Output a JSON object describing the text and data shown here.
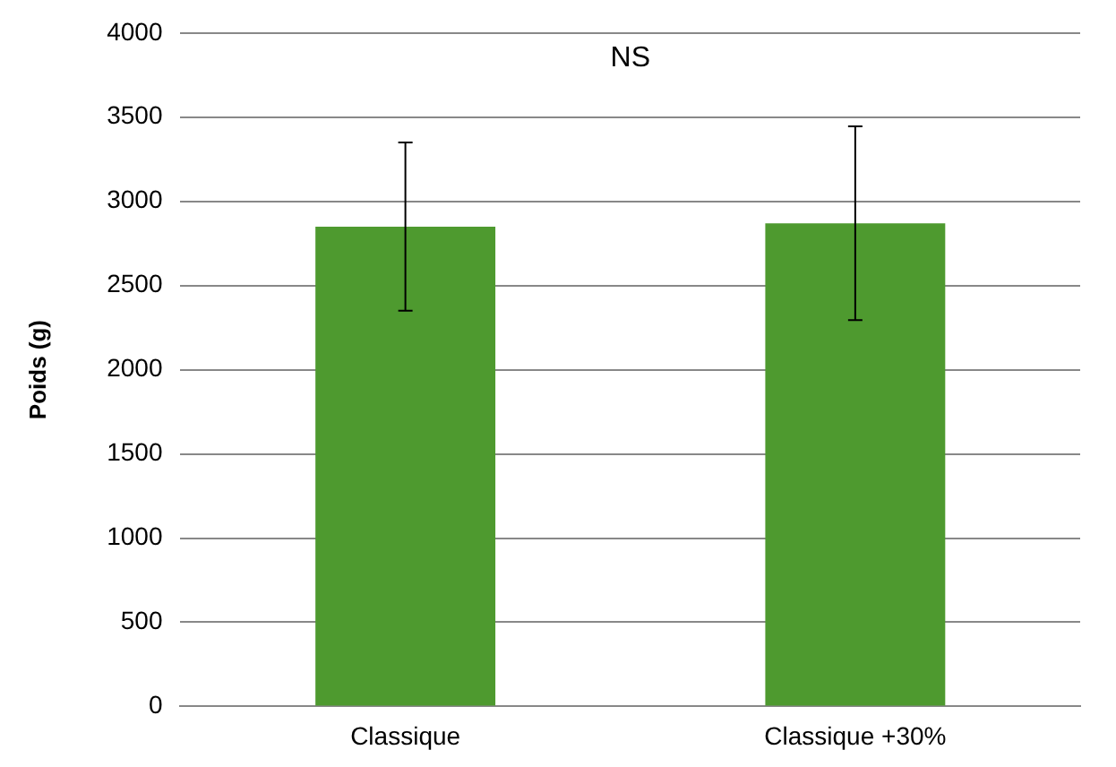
{
  "chart_data": {
    "type": "bar",
    "ylabel": "Poids (g)",
    "categories": [
      "Classique",
      "Classique +30%"
    ],
    "values": [
      2850,
      2870
    ],
    "errors": [
      500,
      575
    ],
    "color": "#4e9a2f",
    "ylim": [
      0,
      4000
    ],
    "yticks": [
      0,
      500,
      1000,
      1500,
      2000,
      2500,
      3000,
      3500,
      4000
    ],
    "grid": "y",
    "legend": false,
    "annotations": [
      "NS"
    ]
  }
}
